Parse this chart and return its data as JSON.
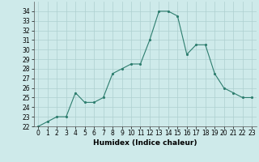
{
  "x": [
    0,
    1,
    2,
    3,
    4,
    5,
    6,
    7,
    8,
    9,
    10,
    11,
    12,
    13,
    14,
    15,
    16,
    17,
    18,
    19,
    20,
    21,
    22,
    23
  ],
  "y": [
    22,
    22.5,
    23,
    23,
    25.5,
    24.5,
    24.5,
    25,
    27.5,
    28,
    28.5,
    28.5,
    31,
    34,
    34,
    33.5,
    29.5,
    30.5,
    30.5,
    27.5,
    26,
    25.5,
    25,
    25
  ],
  "xlabel": "Humidex (Indice chaleur)",
  "ylim": [
    22,
    35
  ],
  "xlim": [
    -0.5,
    23.5
  ],
  "yticks": [
    22,
    23,
    24,
    25,
    26,
    27,
    28,
    29,
    30,
    31,
    32,
    33,
    34
  ],
  "xticks": [
    0,
    1,
    2,
    3,
    4,
    5,
    6,
    7,
    8,
    9,
    10,
    11,
    12,
    13,
    14,
    15,
    16,
    17,
    18,
    19,
    20,
    21,
    22,
    23
  ],
  "line_color": "#2d7d6e",
  "bg_color": "#ceeaea",
  "grid_color": "#aed0d0",
  "label_fontsize": 6.5,
  "tick_fontsize": 5.5
}
